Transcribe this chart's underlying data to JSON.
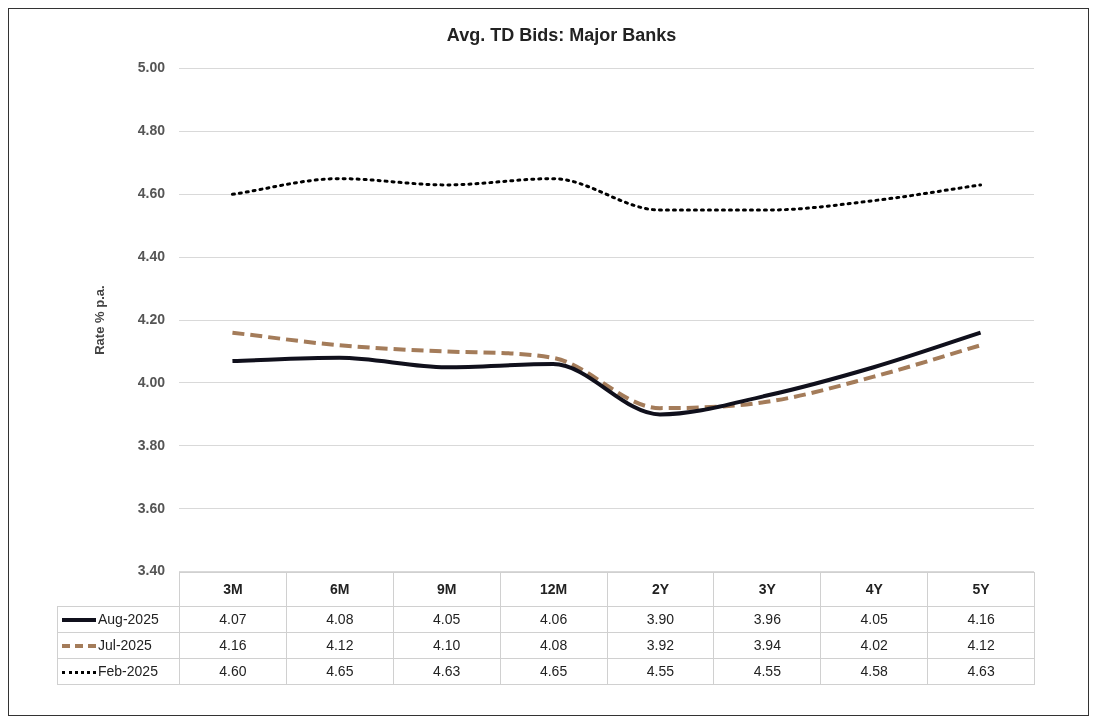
{
  "chart_data": {
    "type": "line",
    "title": "Avg. TD Bids: Major Banks",
    "ylabel": "Rate % p.a.",
    "categories": [
      "3M",
      "6M",
      "9M",
      "12M",
      "2Y",
      "3Y",
      "4Y",
      "5Y"
    ],
    "series": [
      {
        "name": "Aug-2025",
        "color": "#10101c",
        "line_style": "solid",
        "values": [
          4.07,
          4.08,
          4.05,
          4.06,
          3.9,
          3.96,
          4.05,
          4.16
        ],
        "value_labels": [
          "4.07",
          "4.08",
          "4.05",
          "4.06",
          "3.90",
          "3.96",
          "4.05",
          "4.16"
        ]
      },
      {
        "name": "Jul-2025",
        "color": "#a47c5a",
        "line_style": "dashed",
        "values": [
          4.16,
          4.12,
          4.1,
          4.08,
          3.92,
          3.94,
          4.02,
          4.12
        ],
        "value_labels": [
          "4.16",
          "4.12",
          "4.10",
          "4.08",
          "3.92",
          "3.94",
          "4.02",
          "4.12"
        ]
      },
      {
        "name": "Feb-2025",
        "color": "#000000",
        "line_style": "dotted",
        "values": [
          4.6,
          4.65,
          4.63,
          4.65,
          4.55,
          4.55,
          4.58,
          4.63
        ],
        "value_labels": [
          "4.60",
          "4.65",
          "4.63",
          "4.65",
          "4.55",
          "4.55",
          "4.58",
          "4.63"
        ]
      }
    ],
    "ylim": [
      3.4,
      5.0
    ],
    "yticks": [
      {
        "value": 3.4,
        "label": "3.40"
      },
      {
        "value": 3.6,
        "label": "3.60"
      },
      {
        "value": 3.8,
        "label": "3.80"
      },
      {
        "value": 4.0,
        "label": "4.00"
      },
      {
        "value": 4.2,
        "label": "4.20"
      },
      {
        "value": 4.4,
        "label": "4.40"
      },
      {
        "value": 4.6,
        "label": "4.60"
      },
      {
        "value": 4.8,
        "label": "4.80"
      },
      {
        "value": 5.0,
        "label": "5.00"
      }
    ],
    "grid": "y",
    "legend": "bottom"
  }
}
